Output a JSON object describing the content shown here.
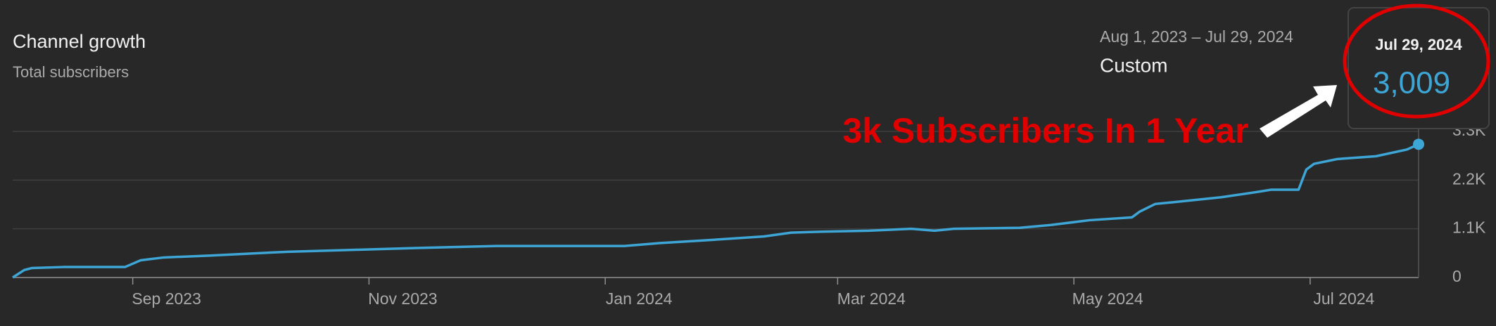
{
  "chart_data": {
    "type": "line",
    "title": "Channel growth",
    "subtitle": "Total subscribers",
    "date_range": "Aug 1, 2023 – Jul 29, 2024",
    "period": "Custom",
    "annotation": "3k Subscribers In 1 Year",
    "highlight": {
      "date": "Jul 29, 2024",
      "value_label": "3,009"
    },
    "x": [
      0,
      3,
      5,
      13,
      29,
      33,
      39,
      51,
      71,
      88,
      105,
      125,
      158,
      167,
      179,
      194,
      201,
      209,
      221,
      232,
      238,
      243,
      260,
      268,
      278,
      289,
      291,
      295,
      300,
      312,
      322,
      325,
      332,
      334,
      336,
      342,
      352,
      360,
      363
    ],
    "series": [
      {
        "name": "Total subscribers",
        "color": "#3ea6d6",
        "values": [
          0,
          170,
          215,
          237,
          237,
          388,
          453,
          496,
          582,
          625,
          669,
          712,
          712,
          777,
          841,
          928,
          1014,
          1035,
          1057,
          1100,
          1057,
          1100,
          1122,
          1186,
          1294,
          1359,
          1488,
          1661,
          1704,
          1812,
          1941,
          1984,
          1984,
          2437,
          2567,
          2675,
          2739,
          2890,
          3009
        ]
      }
    ],
    "xlim": [
      0,
      363
    ],
    "xticks": [
      {
        "value": 31,
        "label": "Sep 2023"
      },
      {
        "value": 92,
        "label": "Nov 2023"
      },
      {
        "value": 153,
        "label": "Jan 2024"
      },
      {
        "value": 213,
        "label": "Mar 2024"
      },
      {
        "value": 274,
        "label": "May 2024"
      },
      {
        "value": 335,
        "label": "Jul 2024"
      }
    ],
    "ylim": [
      0,
      3300
    ],
    "yticks": [
      0,
      {
        "value": 1100,
        "label": "1.1K"
      },
      {
        "value": 2200,
        "label": "2.2K"
      },
      {
        "value": 3300,
        "label": "3.3K"
      }
    ],
    "grid": true
  }
}
